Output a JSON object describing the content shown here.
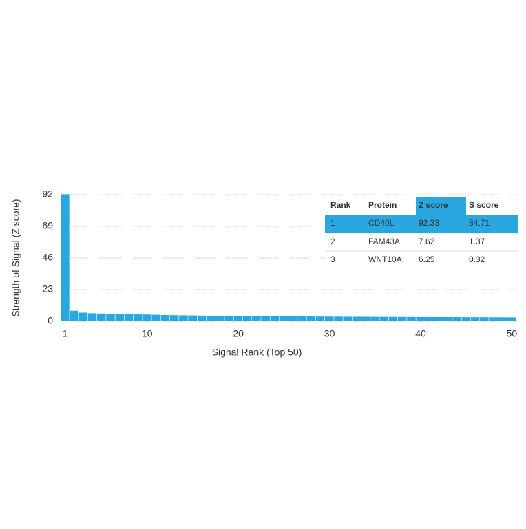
{
  "chart_data": {
    "type": "bar",
    "x_label": "Signal Rank (Top 50)",
    "y_label": "Strength of Signal (Z score)",
    "x": [
      1,
      2,
      3,
      4,
      5,
      6,
      7,
      8,
      9,
      10,
      11,
      12,
      13,
      14,
      15,
      16,
      17,
      18,
      19,
      20,
      21,
      22,
      23,
      24,
      25,
      26,
      27,
      28,
      29,
      30,
      31,
      32,
      33,
      34,
      35,
      36,
      37,
      38,
      39,
      40,
      41,
      42,
      43,
      44,
      45,
      46,
      47,
      48,
      49,
      50
    ],
    "values": [
      92.33,
      7.62,
      6.25,
      5.8,
      5.6,
      5.4,
      5.2,
      5.1,
      5.0,
      4.9,
      4.7,
      4.5,
      4.4,
      4.3,
      4.2,
      4.1,
      4.0,
      3.95,
      3.9,
      3.85,
      3.8,
      3.75,
      3.7,
      3.65,
      3.6,
      3.55,
      3.5,
      3.45,
      3.4,
      3.38,
      3.35,
      3.3,
      3.28,
      3.25,
      3.2,
      3.18,
      3.15,
      3.12,
      3.1,
      3.08,
      3.05,
      3.02,
      3.0,
      2.98,
      2.95,
      2.92,
      2.9,
      2.88,
      2.85,
      2.8
    ],
    "color": "#29a8e0",
    "xlim": [
      0.5,
      50.5
    ],
    "xticks": [
      1,
      10,
      20,
      30,
      40,
      50
    ],
    "ylim": [
      0,
      92
    ],
    "yticks": [
      0,
      23,
      46,
      69,
      92
    ],
    "grid": true
  },
  "table": {
    "header": [
      "Rank",
      "Protein",
      "Z score",
      "S score"
    ],
    "rows": [
      [
        "1",
        "CD40L",
        "92.33",
        "84.71"
      ],
      [
        "2",
        "FAM43A",
        "7.62",
        "1.37"
      ],
      [
        "3",
        "WNT10A",
        "6.25",
        "0.32"
      ]
    ],
    "highlight_row": 0,
    "highlight_column": 2,
    "highlight_color": "#29a8e0"
  }
}
